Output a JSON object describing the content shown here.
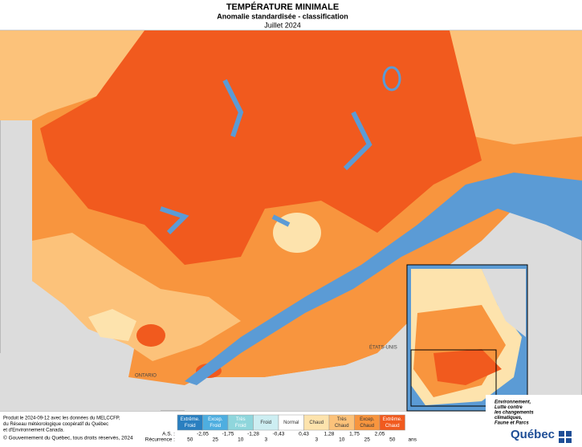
{
  "header": {
    "title": "TEMPÉRATURE MINIMALE",
    "subtitle": "Anomalie standardisée - classification",
    "date": "Juillet 2024"
  },
  "map": {
    "labels": [
      "ÉTATS-UNIS",
      "ONTARIO"
    ]
  },
  "legend": {
    "classes": [
      {
        "lines": [
          "Extrême.",
          "Froid"
        ],
        "color": "#2a7fc0"
      },
      {
        "lines": [
          "Excep.",
          "Froid"
        ],
        "color": "#4eaee0"
      },
      {
        "lines": [
          "Très",
          "Froid"
        ],
        "color": "#8fd6dc"
      },
      {
        "lines": [
          "Froid"
        ],
        "color": "#cdeef2"
      },
      {
        "lines": [
          "Normal"
        ],
        "color": "#ffffff"
      },
      {
        "lines": [
          "Chaud"
        ],
        "color": "#fde3ad"
      },
      {
        "lines": [
          "Très",
          "Chaud"
        ],
        "color": "#fcc27a"
      },
      {
        "lines": [
          "Excep.",
          "Chaud"
        ],
        "color": "#f8953e"
      },
      {
        "lines": [
          "Extrême.",
          "Chaud"
        ],
        "color": "#f15a1e"
      }
    ],
    "as_label": "A.S. :",
    "as_values": [
      "-2,05",
      "-1,75",
      "-1,28",
      "-0,43",
      "0,43",
      "1,28",
      "1,75",
      "2,05"
    ],
    "recurrence_label": "Récurrence :",
    "recurrence_values": [
      50,
      25,
      10,
      3,
      3,
      10,
      25,
      50
    ],
    "recurrence_unit": "ans"
  },
  "footer": {
    "credit_lines": [
      "Produit le 2024-09-12 avec les données du MELCCFP,",
      "du Réseau météorologique coopératif du Québec",
      "et d'Environnement Canada."
    ],
    "copyright": "© Gouvernement du Québec, tous droits réservés, 2024"
  },
  "logo": {
    "lines": [
      "Environnement,",
      "Lutte contre",
      "les changements",
      "climatiques,",
      "Faune et Parcs"
    ],
    "name": "Québec"
  }
}
